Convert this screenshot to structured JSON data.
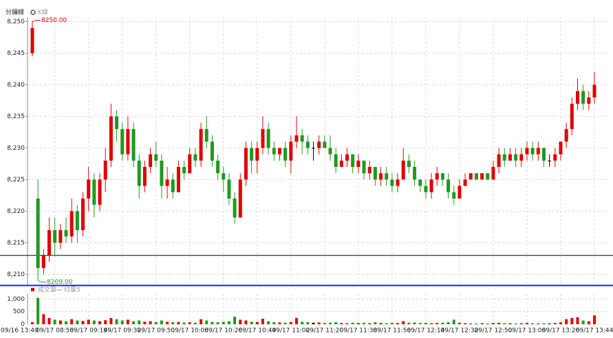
{
  "chart_data": {
    "type": "candlestick",
    "title": "分鐘線",
    "legend": "K線",
    "max_label": "8250.00",
    "min_label": "8209.00",
    "up_color": "#e00000",
    "down_color": "#1e9a1e",
    "reference_line": 8213,
    "grid": true,
    "categories": [
      "09/16 13:40",
      null,
      null,
      null,
      "09/17 08:56",
      null,
      null,
      null,
      null,
      null,
      "09/17 09:14",
      null,
      null,
      null,
      null,
      null,
      "09/17 09:32",
      null,
      null,
      null,
      null,
      null,
      "09/17 09:50",
      null,
      null,
      null,
      null,
      null,
      "09/17 10:08",
      null,
      null,
      null,
      null,
      null,
      "09/17 10:26",
      null,
      null,
      null,
      null,
      null,
      "09/17 10:44",
      null,
      null,
      null,
      null,
      null,
      "09/17 11:02",
      null,
      null,
      null,
      null,
      null,
      "09/17 11:20",
      null,
      null,
      null,
      null,
      null,
      "09/17 11:38",
      null,
      null,
      null,
      null,
      null,
      "09/17 11:56",
      null,
      null,
      null,
      null,
      null,
      "09/17 12:14",
      null,
      null,
      null,
      null,
      null,
      "09/17 12:32",
      null,
      null,
      null,
      null,
      null,
      "09/17 12:50",
      null,
      null,
      null,
      null,
      null,
      "09/17 13:08",
      null,
      null,
      null,
      null,
      null,
      "09/17 13:26",
      null,
      null,
      null,
      null,
      null,
      "09/17 13:44"
    ],
    "open": [
      8245,
      8222,
      8211,
      8213,
      8217,
      8215,
      8217,
      8216,
      8220,
      8217,
      8222,
      8225,
      8221,
      8225,
      8228,
      8235,
      8233,
      8229,
      8233,
      8228,
      8224,
      8227,
      8229,
      8228,
      8224,
      8225,
      8223,
      8227,
      8226,
      8229,
      8228,
      8233,
      8231,
      8228,
      8226,
      8225,
      8222,
      8219,
      8225,
      8230,
      8228,
      8230,
      8233,
      8230,
      8229,
      8230,
      8228,
      8231,
      8232,
      8231,
      8230,
      8230,
      8231,
      8230,
      8229,
      8227,
      8228,
      8229,
      8227,
      8228,
      8226,
      8227,
      8225,
      8226,
      8225,
      8224,
      8225,
      8228,
      8227,
      8225,
      8224,
      8223,
      8225,
      8226,
      8225,
      8223,
      8222,
      8224,
      8225,
      8226,
      8225,
      8226,
      8225,
      8227,
      8229,
      8228,
      8229,
      8228,
      8229,
      8230,
      8229,
      8230,
      8228,
      8228,
      8229,
      8231,
      8233,
      8237,
      8239,
      8237,
      8238
    ],
    "high": [
      8250,
      8225,
      8214,
      8219,
      8219,
      8218,
      8219,
      8222,
      8221,
      8223,
      8227,
      8226,
      8226,
      8230,
      8237,
      8236,
      8234,
      8235,
      8234,
      8229,
      8228,
      8230,
      8231,
      8229,
      8227,
      8226,
      8228,
      8228,
      8230,
      8230,
      8234,
      8235,
      8232,
      8229,
      8227,
      8226,
      8223,
      8226,
      8231,
      8231,
      8231,
      8235,
      8234,
      8231,
      8230,
      8231,
      8232,
      8235,
      8233,
      8232,
      8231,
      8232,
      8232,
      8232,
      8230,
      8229,
      8230,
      8229,
      8229,
      8228,
      8228,
      8227,
      8227,
      8227,
      8226,
      8226,
      8230,
      8229,
      8228,
      8225,
      8225,
      8226,
      8227,
      8226,
      8226,
      8224,
      8225,
      8226,
      8226,
      8226,
      8226,
      8226,
      8228,
      8230,
      8230,
      8230,
      8230,
      8230,
      8231,
      8231,
      8231,
      8230,
      8229,
      8230,
      8231,
      8234,
      8238,
      8241,
      8240,
      8239,
      8242
    ],
    "low": [
      8244.5,
      8209,
      8210,
      8212,
      8213,
      8214,
      8215,
      8215,
      8215,
      8216,
      8220,
      8219,
      8220,
      8223,
      8227,
      8231,
      8228,
      8228,
      8227,
      8222,
      8223,
      8226,
      8227,
      8222,
      8222,
      8222,
      8223,
      8225,
      8226,
      8227,
      8227,
      8230,
      8227,
      8225,
      8223,
      8221,
      8218,
      8219,
      8224,
      8226,
      8226,
      8229,
      8229,
      8228,
      8228,
      8227,
      8226,
      8230,
      8229,
      8229,
      8228,
      8229,
      8230,
      8228,
      8226,
      8227,
      8227,
      8226,
      8226,
      8225,
      8225,
      8224,
      8224,
      8224,
      8223,
      8223,
      8225,
      8226,
      8224,
      8223,
      8222,
      8222,
      8224,
      8224,
      8222,
      8221,
      8222,
      8224,
      8225,
      8225,
      8225,
      8225,
      8225,
      8226,
      8227,
      8228,
      8227,
      8227,
      8228,
      8228,
      8228,
      8227,
      8227,
      8227,
      8228,
      8230,
      8232,
      8236,
      8236,
      8236,
      8237
    ],
    "close": [
      8249,
      8211,
      8213,
      8217,
      8215,
      8217,
      8216,
      8220,
      8217,
      8222,
      8225,
      8221,
      8225,
      8228,
      8235,
      8233,
      8229,
      8233,
      8228,
      8224,
      8227,
      8229,
      8228,
      8224,
      8225,
      8223,
      8227,
      8226,
      8229,
      8228,
      8233,
      8231,
      8228,
      8226,
      8225,
      8222,
      8219,
      8225,
      8230,
      8228,
      8230,
      8233,
      8230,
      8229,
      8230,
      8228,
      8231,
      8232,
      8231,
      8230,
      8230,
      8231,
      8230,
      8229,
      8227,
      8228,
      8229,
      8227,
      8228,
      8226,
      8227,
      8225,
      8226,
      8225,
      8224,
      8225,
      8228,
      8227,
      8225,
      8224,
      8223,
      8225,
      8226,
      8225,
      8223,
      8222,
      8224,
      8225,
      8226,
      8225,
      8226,
      8225,
      8227,
      8229,
      8228,
      8229,
      8228,
      8229,
      8230,
      8229,
      8230,
      8228,
      8228,
      8229,
      8231,
      8233,
      8237,
      8239,
      8237,
      8238,
      8240
    ],
    "ylim": [
      8208.3,
      8250.7
    ],
    "yticks": [
      {
        "value": 8210,
        "label": "8,210"
      },
      {
        "value": 8215,
        "label": "8,215"
      },
      {
        "value": 8220,
        "label": "8,220"
      },
      {
        "value": 8225,
        "label": "8,225"
      },
      {
        "value": 8230,
        "label": "8,230"
      },
      {
        "value": 8235,
        "label": "8,235"
      },
      {
        "value": 8240,
        "label": "8,240"
      },
      {
        "value": 8245,
        "label": "8,245"
      },
      {
        "value": 8250,
        "label": "8,250"
      }
    ],
    "volume": {
      "legend": [
        "成交量",
        "均量5"
      ],
      "ylim": [
        0,
        1200
      ],
      "yticks": [
        0,
        500,
        {
          "value": 1000,
          "label": "1,000"
        }
      ],
      "values": [
        80,
        1050,
        400,
        250,
        180,
        150,
        120,
        200,
        150,
        130,
        180,
        150,
        120,
        160,
        250,
        200,
        150,
        180,
        120,
        150,
        100,
        120,
        90,
        150,
        100,
        80,
        90,
        70,
        80,
        60,
        200,
        150,
        90,
        80,
        100,
        120,
        300,
        180,
        150,
        100,
        90,
        220,
        120,
        80,
        70,
        60,
        90,
        250,
        100,
        80,
        60,
        70,
        50,
        60,
        80,
        50,
        40,
        60,
        50,
        60,
        40,
        80,
        50,
        40,
        60,
        50,
        120,
        60,
        70,
        50,
        60,
        40,
        50,
        60,
        80,
        180,
        60,
        40,
        30,
        30,
        40,
        30,
        50,
        60,
        40,
        40,
        30,
        40,
        60,
        40,
        30,
        40,
        30,
        50,
        80,
        200,
        250,
        280,
        150,
        120,
        350
      ]
    }
  }
}
